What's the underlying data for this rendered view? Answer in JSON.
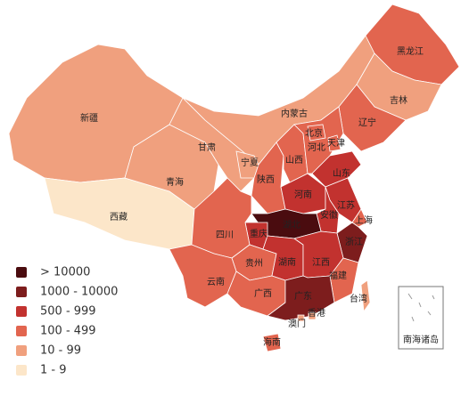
{
  "legend": [
    {
      "label": "> 10000",
      "color": "#4a0c0f"
    },
    {
      "label": "1000 - 10000",
      "color": "#7d1d1d"
    },
    {
      "label": "500 - 999",
      "color": "#c2322f"
    },
    {
      "label": "100 - 499",
      "color": "#e2654f"
    },
    {
      "label": "10 - 99",
      "color": "#f0a07e"
    },
    {
      "label": "1 - 9",
      "color": "#fce6c9"
    }
  ],
  "regions": [
    {
      "name": "新疆",
      "level": 4
    },
    {
      "name": "西藏",
      "level": 5
    },
    {
      "name": "青海",
      "level": 4
    },
    {
      "name": "甘肃",
      "level": 4
    },
    {
      "name": "内蒙古",
      "level": 4
    },
    {
      "name": "黑龙江",
      "level": 3
    },
    {
      "name": "吉林",
      "level": 4
    },
    {
      "name": "辽宁",
      "level": 3
    },
    {
      "name": "宁夏",
      "level": 4
    },
    {
      "name": "陕西",
      "level": 3
    },
    {
      "name": "山西",
      "level": 3
    },
    {
      "name": "河北",
      "level": 3
    },
    {
      "name": "北京",
      "level": 3
    },
    {
      "name": "天津",
      "level": 3
    },
    {
      "name": "山东",
      "level": 2
    },
    {
      "name": "河南",
      "level": 2
    },
    {
      "name": "江苏",
      "level": 2
    },
    {
      "name": "安徽",
      "level": 2
    },
    {
      "name": "上海",
      "level": 3
    },
    {
      "name": "浙江",
      "level": 1
    },
    {
      "name": "湖北",
      "level": 0
    },
    {
      "name": "重庆",
      "level": 2
    },
    {
      "name": "四川",
      "level": 3
    },
    {
      "name": "贵州",
      "level": 3
    },
    {
      "name": "云南",
      "level": 3
    },
    {
      "name": "湖南",
      "level": 2
    },
    {
      "name": "江西",
      "level": 2
    },
    {
      "name": "福建",
      "level": 3
    },
    {
      "name": "广西",
      "level": 3
    },
    {
      "name": "广东",
      "level": 1
    },
    {
      "name": "海南",
      "level": 3
    },
    {
      "name": "台湾",
      "level": 4
    },
    {
      "name": "香港",
      "level": 4
    },
    {
      "name": "澳门",
      "level": 4
    }
  ],
  "inset": "南海诸岛"
}
